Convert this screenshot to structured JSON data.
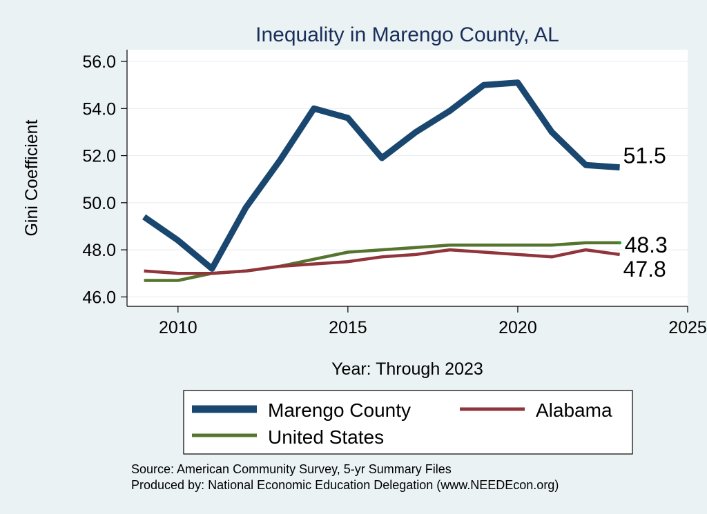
{
  "chart_data": {
    "type": "line",
    "title": "Inequality in Marengo County, AL",
    "xlabel": "Year: Through 2023",
    "ylabel": "Gini Coefficient",
    "xlim": [
      2008.5,
      2025
    ],
    "ylim": [
      45.6,
      56.5
    ],
    "xticks": [
      2010,
      2015,
      2020,
      2025
    ],
    "xtick_labels": [
      "2010",
      "2015",
      "2020",
      "2025"
    ],
    "yticks": [
      46,
      48,
      50,
      52,
      54,
      56
    ],
    "ytick_labels": [
      "46.0",
      "48.0",
      "50.0",
      "52.0",
      "54.0",
      "56.0"
    ],
    "grid": true,
    "x": [
      2009,
      2010,
      2011,
      2012,
      2013,
      2014,
      2015,
      2016,
      2017,
      2018,
      2019,
      2020,
      2021,
      2022,
      2023
    ],
    "series": [
      {
        "name": "Marengo County",
        "color": "#1a476f",
        "values": [
          49.4,
          48.4,
          47.2,
          49.8,
          51.8,
          54.0,
          53.6,
          51.9,
          53.0,
          53.9,
          55.0,
          55.1,
          53.0,
          51.6,
          51.5
        ],
        "end_label": "51.5"
      },
      {
        "name": "Alabama",
        "color": "#90353b",
        "values": [
          47.1,
          47.0,
          47.0,
          47.1,
          47.3,
          47.4,
          47.5,
          47.7,
          47.8,
          48.0,
          47.9,
          47.8,
          47.7,
          48.0,
          47.8
        ],
        "end_label": "47.8"
      },
      {
        "name": "United States",
        "color": "#55752f",
        "values": [
          46.7,
          46.7,
          47.0,
          47.1,
          47.3,
          47.6,
          47.9,
          48.0,
          48.1,
          48.2,
          48.2,
          48.2,
          48.2,
          48.3,
          48.3
        ],
        "end_label": "48.3"
      }
    ],
    "legend": [
      "Marengo County",
      "Alabama",
      "United States"
    ],
    "notes": [
      "Source: American Community Survey, 5-yr Summary Files",
      "Produced by: National Economic Education Delegation (www.NEEDEcon.org)"
    ]
  }
}
